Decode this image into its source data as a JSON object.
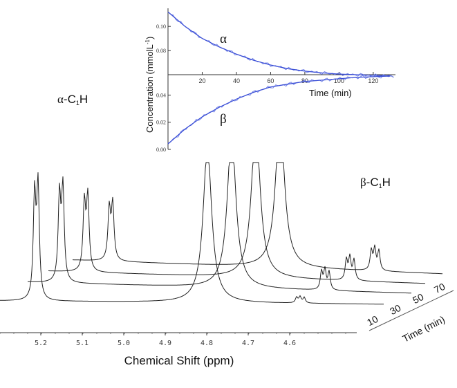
{
  "chart_data": [
    {
      "type": "line",
      "title": "",
      "xlabel": "Chemical Shift (ppm)",
      "ylabel": "",
      "x_axis_reversed": true,
      "xlim": [
        5.28,
        4.5
      ],
      "x_ticks": [
        "5.2",
        "5.1",
        "5.0",
        "4.9",
        "4.8",
        "4.7",
        "4.6"
      ],
      "depth_axis_label": "Time (min)",
      "depth_ticks": [
        "10",
        "30",
        "50",
        "70"
      ],
      "peak_labels": [
        {
          "greek": "α",
          "rest": "-C",
          "sub": "1",
          "end": "H"
        },
        {
          "greek": "β",
          "rest": "-C",
          "sub": "1",
          "end": "H"
        }
      ],
      "series": [
        {
          "time": 10,
          "alpha_doublet_ppm": 5.21,
          "alpha_height": 1.0,
          "beta_multiplet_ppm": 4.64,
          "beta_height": 0.1
        },
        {
          "time": 30,
          "alpha_doublet_ppm": 5.15,
          "alpha_height": 0.92,
          "beta_multiplet_ppm": 4.58,
          "beta_height": 0.4
        },
        {
          "time": 50,
          "alpha_doublet_ppm": 5.09,
          "alpha_height": 0.78,
          "beta_multiplet_ppm": 4.52,
          "beta_height": 0.52
        },
        {
          "time": 70,
          "alpha_doublet_ppm": 5.03,
          "alpha_height": 0.64,
          "beta_multiplet_ppm": 4.46,
          "beta_height": 0.6
        }
      ],
      "line_color": "#222222"
    },
    {
      "type": "line",
      "title": "",
      "xlabel": "Time (min)",
      "ylabel": "Concentration (mmolL",
      "ylabel_superscript": "-1",
      "ylabel_close": ")",
      "x_ticks": [
        "20",
        "40",
        "60",
        "80",
        "100",
        "120"
      ],
      "upper_y_ticks": [
        "0.10",
        "0.08"
      ],
      "lower_y_ticks": [
        "0.04",
        "0.02",
        "0.00"
      ],
      "xlim": [
        0,
        133
      ],
      "upper_ylim": [
        0.06,
        0.115
      ],
      "lower_ylim": [
        0.0,
        0.055
      ],
      "series": [
        {
          "name": "α",
          "panel": "upper",
          "x": [
            0,
            10,
            20,
            30,
            40,
            50,
            60,
            70,
            80,
            90,
            100,
            110,
            120,
            130
          ],
          "y": [
            0.112,
            0.1,
            0.09,
            0.083,
            0.077,
            0.072,
            0.068,
            0.065,
            0.063,
            0.0615,
            0.0605,
            0.06,
            0.0595,
            0.059
          ]
        },
        {
          "name": "β",
          "panel": "lower",
          "x": [
            0,
            10,
            20,
            30,
            40,
            50,
            60,
            70,
            80,
            90,
            100,
            110,
            120,
            130
          ],
          "y": [
            0.004,
            0.015,
            0.024,
            0.031,
            0.037,
            0.042,
            0.046,
            0.048,
            0.05,
            0.051,
            0.052,
            0.053,
            0.0535,
            0.054
          ]
        }
      ],
      "line_color": "#3b4fd6"
    }
  ]
}
